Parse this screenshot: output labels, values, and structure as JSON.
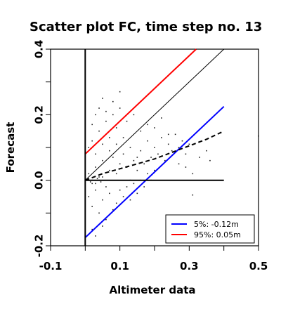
{
  "chart_data": {
    "type": "scatter",
    "title": "Scatter plot FC, time step no. 13",
    "xlabel": "Altimeter data",
    "ylabel": "Forecast",
    "xlim": [
      -0.1,
      0.5
    ],
    "ylim": [
      -0.2,
      0.4
    ],
    "x_ticks": [
      -0.1,
      0.1,
      0.3,
      0.5
    ],
    "x_tick_labels": [
      "-0.1",
      "0.1",
      "0.3",
      "0.5"
    ],
    "y_ticks": [
      -0.2,
      0.0,
      0.2,
      0.4
    ],
    "y_tick_labels": [
      "-0.2",
      "0.0",
      "0.2",
      "0.4"
    ],
    "grid": false,
    "legend": {
      "position": "bottom-right",
      "entries": [
        {
          "label": "5%: -0.12m",
          "color": "#0000ff"
        },
        {
          "label": "95%:  0.05m",
          "color": "#ff0000"
        }
      ]
    },
    "lines": [
      {
        "style": "solid",
        "color": "#000000",
        "x": [
          0,
          0.4
        ],
        "y": [
          0,
          0.4
        ]
      },
      {
        "style": "solid",
        "color": "#ff0000",
        "x": [
          0,
          0.32
        ],
        "y": [
          0.08,
          0.4
        ]
      },
      {
        "style": "solid",
        "color": "#0000ff",
        "x": [
          0,
          0.4
        ],
        "y": [
          -0.175,
          0.225
        ]
      },
      {
        "style": "dashed",
        "color": "#000000",
        "x": [
          0,
          0.05,
          0.1,
          0.15,
          0.2,
          0.25,
          0.3,
          0.35,
          0.4
        ],
        "y": [
          0.0,
          0.02,
          0.035,
          0.05,
          0.065,
          0.085,
          0.105,
          0.125,
          0.15
        ]
      },
      {
        "style": "solid",
        "color": "#000000",
        "x": [
          0,
          0
        ],
        "y": [
          -0.2,
          0.4
        ]
      },
      {
        "style": "solid",
        "color": "#000000",
        "x": [
          0,
          0.4
        ],
        "y": [
          0,
          0
        ]
      }
    ],
    "series": [
      {
        "values": [
          [
            0.01,
            0.02
          ],
          [
            0.02,
            -0.01
          ],
          [
            0.03,
            0.04
          ],
          [
            0.04,
            0.01
          ],
          [
            0.05,
            0.06
          ],
          [
            0.06,
            -0.02
          ],
          [
            0.07,
            0.03
          ],
          [
            0.08,
            0.07
          ],
          [
            0.09,
            0.02
          ],
          [
            0.1,
            0.05
          ],
          [
            0.11,
            0.08
          ],
          [
            0.12,
            0.04
          ],
          [
            0.13,
            0.1
          ],
          [
            0.14,
            0.06
          ],
          [
            0.15,
            0.03
          ],
          [
            0.16,
            0.09
          ],
          [
            0.17,
            0.05
          ],
          [
            0.18,
            0.12
          ],
          [
            0.19,
            0.07
          ],
          [
            0.2,
            0.1
          ],
          [
            0.21,
            0.08
          ],
          [
            0.22,
            0.13
          ],
          [
            0.23,
            0.06
          ],
          [
            0.24,
            0.11
          ],
          [
            0.25,
            0.09
          ],
          [
            0.26,
            0.14
          ],
          [
            0.27,
            0.1
          ],
          [
            0.28,
            0.12
          ],
          [
            0.29,
            0.08
          ],
          [
            0.3,
            0.11
          ],
          [
            0.01,
            0.1
          ],
          [
            0.02,
            0.12
          ],
          [
            0.03,
            0.08
          ],
          [
            0.04,
            0.15
          ],
          [
            0.05,
            0.11
          ],
          [
            0.06,
            0.18
          ],
          [
            0.07,
            0.13
          ],
          [
            0.08,
            0.2
          ],
          [
            0.09,
            0.16
          ],
          [
            0.1,
            0.22
          ],
          [
            0.01,
            -0.05
          ],
          [
            0.02,
            -0.08
          ],
          [
            0.03,
            -0.03
          ],
          [
            0.04,
            -0.1
          ],
          [
            0.05,
            -0.06
          ],
          [
            0.06,
            -0.12
          ],
          [
            0.07,
            -0.04
          ],
          [
            0.08,
            -0.09
          ],
          [
            0.09,
            -0.07
          ],
          [
            0.1,
            -0.03
          ],
          [
            0.11,
            -0.05
          ],
          [
            0.12,
            -0.02
          ],
          [
            0.13,
            -0.06
          ],
          [
            0.14,
            -0.01
          ],
          [
            0.15,
            -0.04
          ],
          [
            0.16,
            0.0
          ],
          [
            0.17,
            -0.02
          ],
          [
            0.18,
            0.02
          ],
          [
            0.19,
            0.0
          ],
          [
            0.2,
            0.03
          ],
          [
            0.005,
            0.0
          ],
          [
            0.01,
            0.005
          ],
          [
            0.015,
            -0.005
          ],
          [
            0.02,
            0.0
          ],
          [
            0.025,
            0.01
          ],
          [
            0.03,
            -0.01
          ],
          [
            0.035,
            0.005
          ],
          [
            0.04,
            0.0
          ],
          [
            0.045,
            -0.005
          ],
          [
            0.05,
            0.01
          ],
          [
            0.02,
            0.17
          ],
          [
            0.03,
            0.2
          ],
          [
            0.04,
            0.22
          ],
          [
            0.05,
            0.25
          ],
          [
            0.06,
            0.21
          ],
          [
            0.08,
            0.24
          ],
          [
            0.1,
            0.27
          ],
          [
            0.02,
            -0.15
          ],
          [
            0.03,
            -0.17
          ],
          [
            0.05,
            -0.14
          ],
          [
            0.12,
            0.18
          ],
          [
            0.14,
            0.2
          ],
          [
            0.16,
            0.15
          ],
          [
            0.18,
            0.17
          ],
          [
            0.2,
            0.16
          ],
          [
            0.22,
            0.19
          ],
          [
            0.24,
            0.14
          ],
          [
            0.27,
            0.05
          ],
          [
            0.29,
            0.04
          ],
          [
            0.31,
            0.02
          ],
          [
            0.5,
            0.135
          ],
          [
            0.31,
            -0.045
          ],
          [
            0.33,
            0.07
          ],
          [
            0.35,
            0.09
          ],
          [
            0.36,
            0.06
          ],
          [
            0.11,
            0.13
          ],
          [
            0.09,
            0.11
          ],
          [
            0.07,
            0.09
          ],
          [
            0.13,
            0.0
          ],
          [
            0.15,
            0.07
          ]
        ]
      }
    ]
  }
}
